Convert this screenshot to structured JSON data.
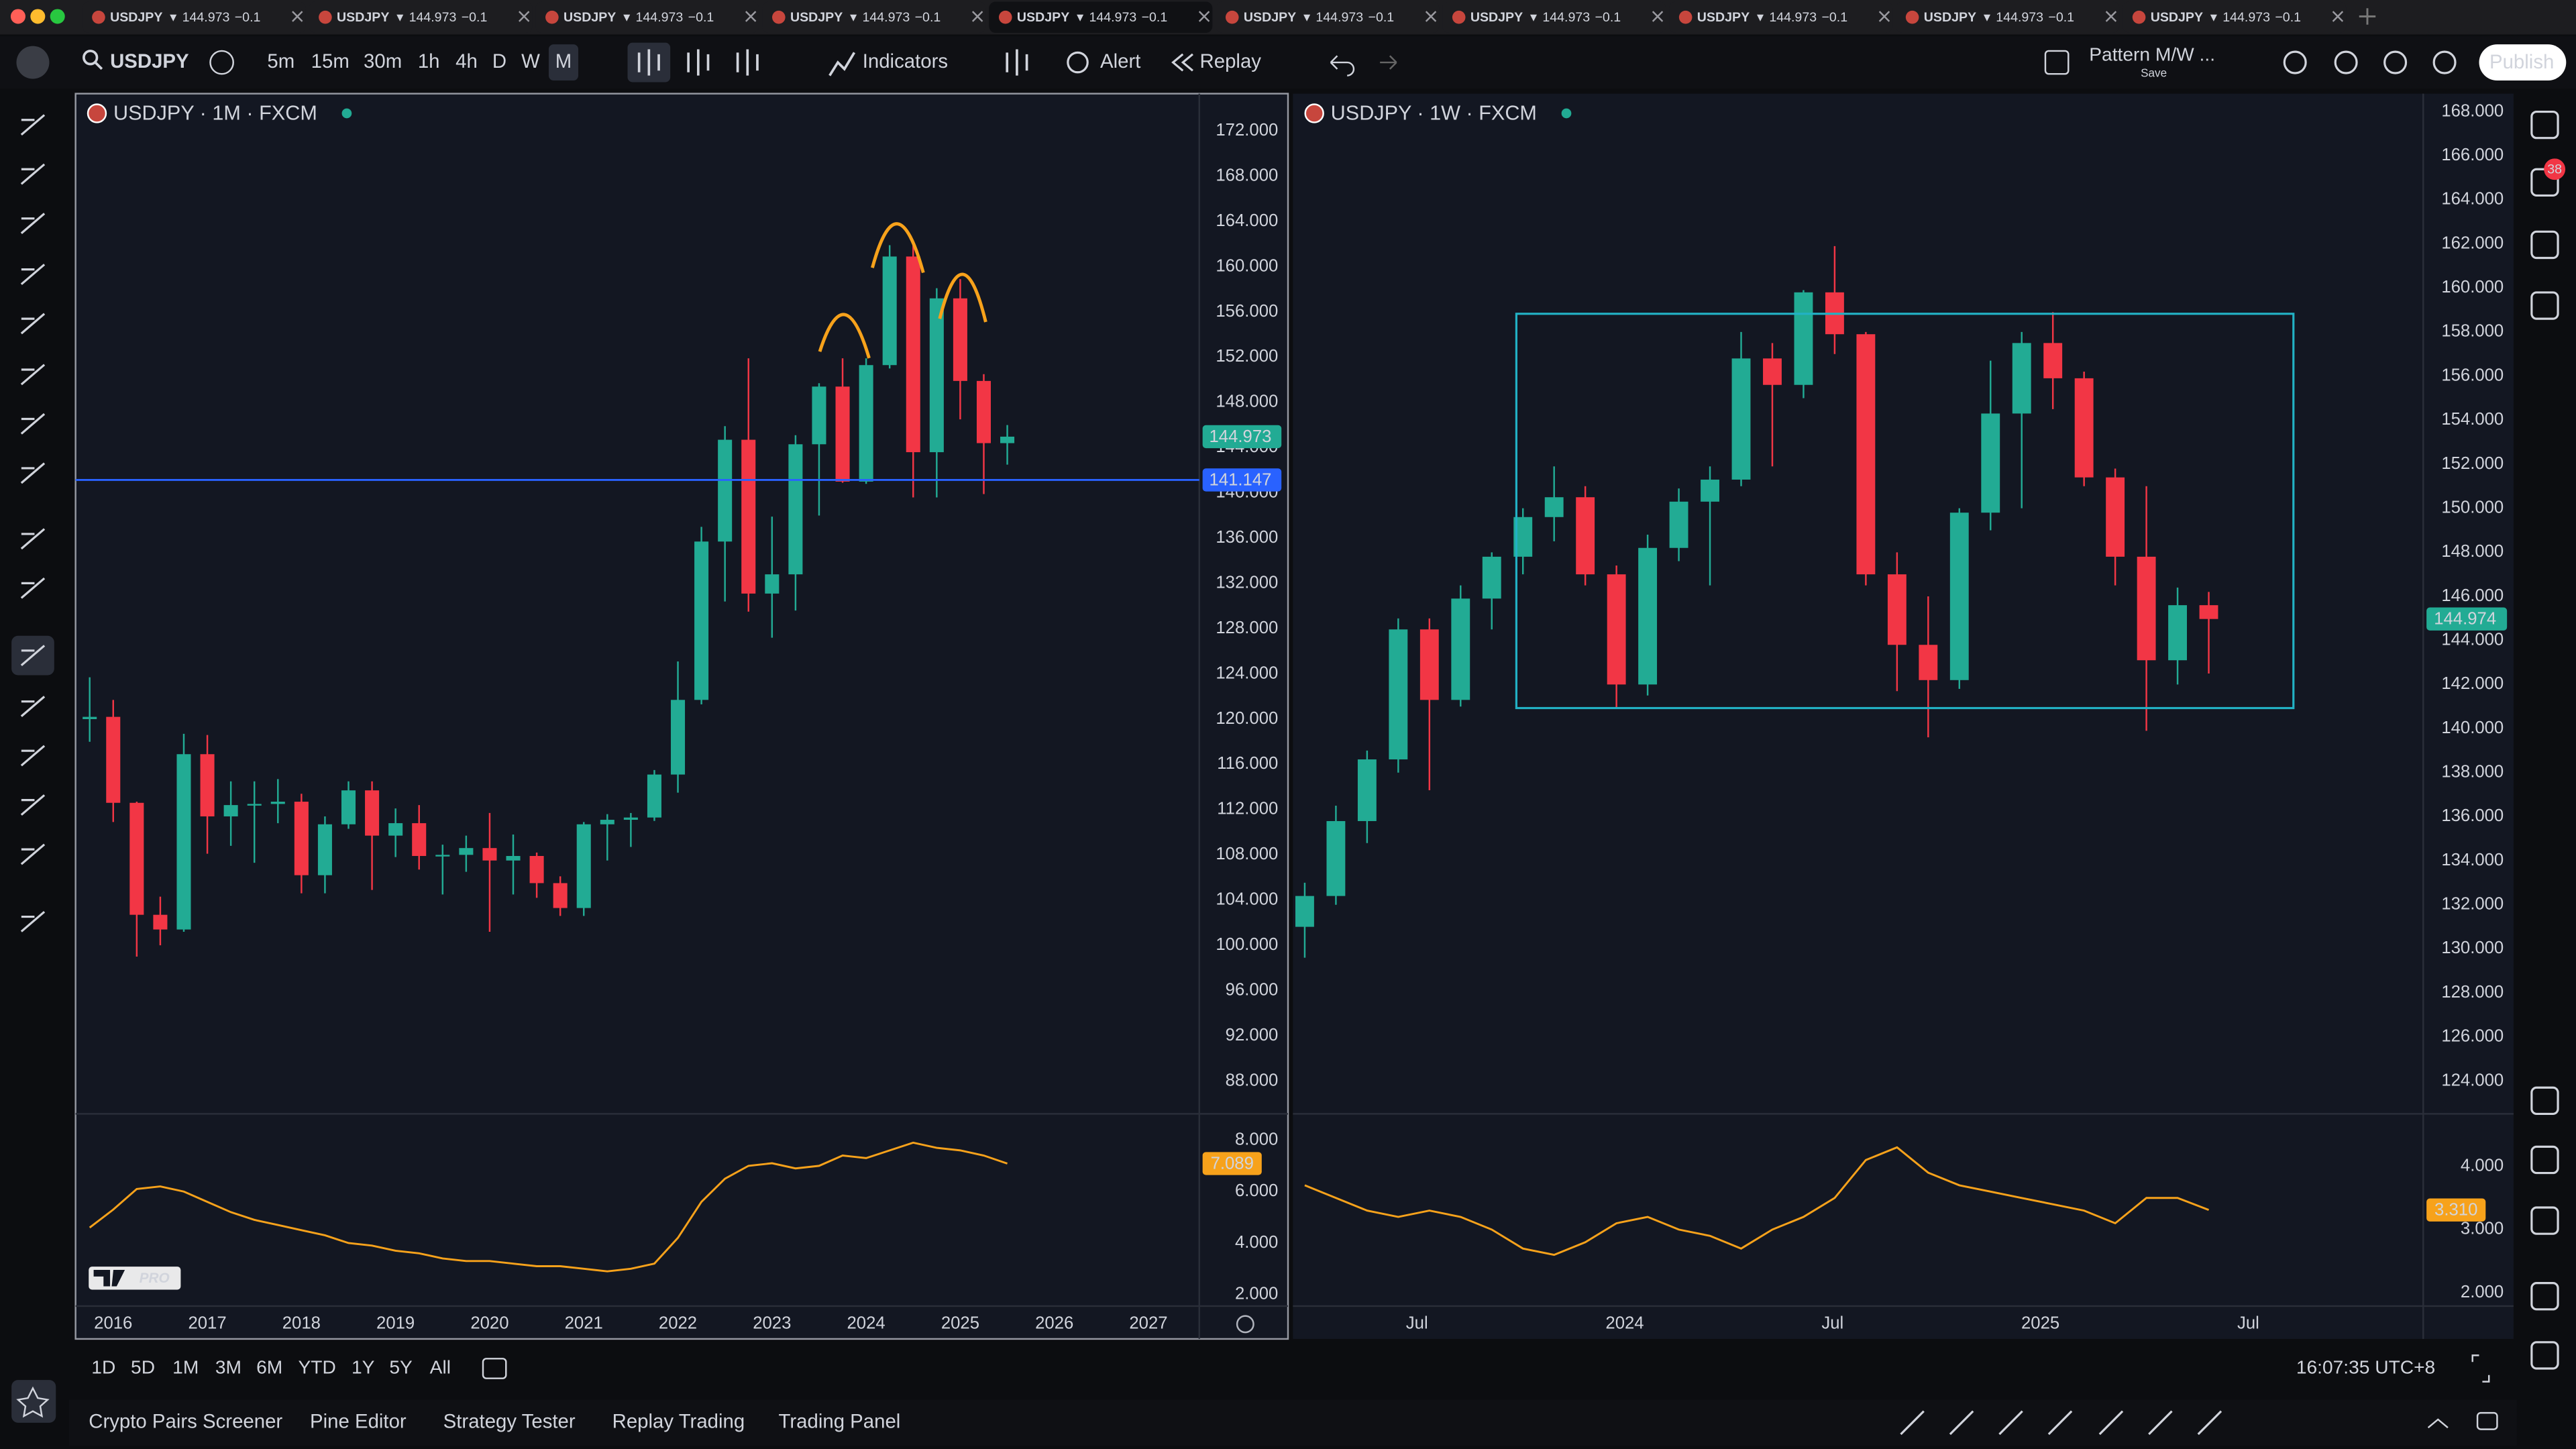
{
  "ui": {
    "tabs": [
      {
        "symbol": "USDJPY",
        "arrow": "▼",
        "price": "144.973",
        "change": "−0.1"
      },
      {
        "symbol": "USDJPY",
        "arrow": "▼",
        "price": "144.973",
        "change": "−0.1"
      },
      {
        "symbol": "USDJPY",
        "arrow": "▼",
        "price": "144.973",
        "change": "−0.1"
      },
      {
        "symbol": "USDJPY",
        "arrow": "▼",
        "price": "144.973",
        "change": "−0.1"
      },
      {
        "symbol": "USDJPY",
        "arrow": "▼",
        "price": "144.973",
        "change": "−0.1"
      },
      {
        "symbol": "USDJPY",
        "arrow": "▼",
        "price": "144.973",
        "change": "−0.1"
      },
      {
        "symbol": "USDJPY",
        "arrow": "▼",
        "price": "144.973",
        "change": "−0.1"
      },
      {
        "symbol": "USDJPY",
        "arrow": "▼",
        "price": "144.973",
        "change": "−0.1"
      },
      {
        "symbol": "USDJPY",
        "arrow": "▼",
        "price": "144.973",
        "change": "−0.1"
      },
      {
        "symbol": "USDJPY",
        "arrow": "▼",
        "price": "144.973",
        "change": "−0.1"
      }
    ],
    "toolbar": {
      "symbol": "USDJPY",
      "intervals": [
        "5m",
        "15m",
        "30m",
        "1h",
        "4h",
        "D",
        "W",
        "M"
      ],
      "indicators": "Indicators",
      "alert": "Alert",
      "replay": "Replay",
      "layout_name": "Pattern M/W ...",
      "save": "Save",
      "publish": "Publish"
    },
    "notification_count": "38",
    "logo": "PRO",
    "ranges": [
      "1D",
      "5D",
      "1M",
      "3M",
      "6M",
      "YTD",
      "1Y",
      "5Y",
      "All"
    ],
    "clock": "16:07:35 UTC+8",
    "bottom_tabs": [
      "Crypto Pairs Screener",
      "Pine Editor",
      "Strategy Tester",
      "Replay Trading",
      "Trading Panel"
    ]
  },
  "chart_data": [
    {
      "type": "candlestick",
      "title": "USDJPY · 1M · FXCM",
      "up_color": "#22ab94",
      "down_color": "#f23645",
      "x": [
        2015.75,
        2016,
        2016.25,
        2016.5,
        2016.75,
        2017,
        2017.25,
        2017.5,
        2017.75,
        2018,
        2018.25,
        2018.5,
        2018.75,
        2019,
        2019.25,
        2019.5,
        2019.75,
        2020,
        2020.25,
        2020.5,
        2020.75,
        2021,
        2021.25,
        2021.5,
        2021.75,
        2022,
        2022.25,
        2022.5,
        2022.75,
        2023,
        2023.25,
        2023.5,
        2023.75,
        2024,
        2024.25,
        2024.5,
        2024.75,
        2025,
        2025.25,
        2025.5
      ],
      "open": [
        120,
        120.2,
        112.6,
        102.7,
        101.4,
        116.9,
        111.4,
        112.4,
        112.5,
        112.7,
        106.2,
        110.7,
        113.7,
        109.7,
        110.8,
        107.9,
        108,
        108.6,
        107.5,
        107.9,
        105.5,
        103.3,
        110.7,
        111.1,
        111.3,
        115.1,
        121.7,
        135.7,
        144.7,
        131.1,
        132.8,
        144.3,
        149.4,
        141,
        151.3,
        160.9,
        143.6,
        157.2,
        149.9,
        144.4
      ],
      "high": [
        123.7,
        121.7,
        112.7,
        104.3,
        118.7,
        118.6,
        114.5,
        114.5,
        114.7,
        113.4,
        111.4,
        114.5,
        114.5,
        112.1,
        112.4,
        108.9,
        109.7,
        111.7,
        109.8,
        108.2,
        106.1,
        110.9,
        111.6,
        111.7,
        115.5,
        125.1,
        137,
        145.9,
        151.9,
        137.9,
        145.1,
        149.7,
        151.9,
        151.9,
        161.9,
        161.9,
        158.1,
        158.9,
        150.5,
        146
      ],
      "low": [
        118,
        110.9,
        99,
        100,
        101.2,
        108.1,
        108.8,
        107.3,
        110.8,
        104.6,
        104.6,
        110.3,
        104.9,
        107.8,
        106.7,
        104.5,
        106.5,
        101.2,
        104.5,
        104.2,
        102.6,
        102.6,
        107.5,
        108.7,
        111,
        113.5,
        121.3,
        130.4,
        129.5,
        127.2,
        129.6,
        138,
        140.9,
        140.8,
        151,
        139.6,
        139.6,
        146.5,
        139.9,
        142.5
      ],
      "close": [
        120.2,
        112.6,
        102.7,
        101.4,
        116.9,
        111.4,
        112.4,
        112.5,
        112.7,
        106.2,
        110.7,
        113.7,
        109.7,
        110.8,
        107.9,
        108,
        108.6,
        107.5,
        107.9,
        105.5,
        103.3,
        110.7,
        111.1,
        111.3,
        115.1,
        121.7,
        135.7,
        144.7,
        131.1,
        132.8,
        144.3,
        149.4,
        141,
        151.3,
        160.9,
        143.6,
        157.2,
        149.9,
        144.4,
        144.973
      ],
      "xlim": [
        2015.6,
        2027.54
      ],
      "xticks": [
        2016,
        2017,
        2018,
        2019,
        2020,
        2021,
        2022,
        2023,
        2024,
        2025,
        2026,
        2027
      ],
      "ylim": [
        85.1,
        175.3
      ],
      "yticks": [
        {
          "value": 88,
          "label": "88.000"
        },
        {
          "value": 92,
          "label": "92.000"
        },
        {
          "value": 96,
          "label": "96.000"
        },
        {
          "value": 100,
          "label": "100.000"
        },
        {
          "value": 104,
          "label": "104.000"
        },
        {
          "value": 108,
          "label": "108.000"
        },
        {
          "value": 112,
          "label": "112.000"
        },
        {
          "value": 116,
          "label": "116.000"
        },
        {
          "value": 120,
          "label": "120.000"
        },
        {
          "value": 124,
          "label": "124.000"
        },
        {
          "value": 128,
          "label": "128.000"
        },
        {
          "value": 132,
          "label": "132.000"
        },
        {
          "value": 136,
          "label": "136.000"
        },
        {
          "value": 140,
          "label": "140.000"
        },
        {
          "value": 144,
          "label": "144.000"
        },
        {
          "value": 148,
          "label": "148.000"
        },
        {
          "value": 152,
          "label": "152.000"
        },
        {
          "value": 156,
          "label": "156.000"
        },
        {
          "value": 160,
          "label": "160.000"
        },
        {
          "value": 164,
          "label": "164.000"
        },
        {
          "value": 168,
          "label": "168.000"
        },
        {
          "value": 172,
          "label": "172.000"
        }
      ],
      "price_badges": [
        {
          "value": 144.973,
          "label": "144.973",
          "color": "#22ab94",
          "line": false
        },
        {
          "value": 141.147,
          "label": "141.147",
          "color": "#2962ff",
          "line": true
        }
      ],
      "indicator": {
        "type": "line",
        "color": "#f7a21b",
        "values": [
          4.6,
          5.3,
          6.1,
          6.2,
          6,
          5.6,
          5.2,
          4.9,
          4.7,
          4.5,
          4.3,
          4,
          3.9,
          3.7,
          3.6,
          3.4,
          3.3,
          3.3,
          3.2,
          3.1,
          3.1,
          3,
          2.9,
          3,
          3.2,
          4.2,
          5.6,
          6.5,
          7,
          7.1,
          6.9,
          7,
          7.4,
          7.3,
          7.6,
          7.9,
          7.7,
          7.6,
          7.4,
          7.089
        ],
        "ylim": [
          1.55,
          9.02
        ],
        "yticks": [
          {
            "value": 2,
            "label": "2.000"
          },
          {
            "value": 4,
            "label": "4.000"
          },
          {
            "value": 6,
            "label": "6.000"
          },
          {
            "value": 8,
            "label": "8.000"
          }
        ],
        "badge": {
          "value": 7.089,
          "label": "7.089"
        }
      }
    },
    {
      "type": "candlestick",
      "title": "USDJPY · 1W · FXCM",
      "up_color": "#22ab94",
      "down_color": "#f23645",
      "x": [
        2023.23,
        2023.305,
        2023.38,
        2023.455,
        2023.53,
        2023.605,
        2023.68,
        2023.755,
        2023.83,
        2023.905,
        2023.98,
        2024.055,
        2024.13,
        2024.205,
        2024.28,
        2024.355,
        2024.43,
        2024.505,
        2024.58,
        2024.655,
        2024.73,
        2024.805,
        2024.88,
        2024.955,
        2025.03,
        2025.105,
        2025.18,
        2025.255,
        2025.33,
        2025.405
      ],
      "open": [
        131,
        132.4,
        135.8,
        138.6,
        144.5,
        141.3,
        145.9,
        147.8,
        149.6,
        150.5,
        147,
        142,
        148.2,
        150.3,
        151.3,
        156.8,
        155.6,
        159.8,
        157.9,
        147,
        143.8,
        142.2,
        149.8,
        154.3,
        157.5,
        155.9,
        151.4,
        147.8,
        143.1,
        145.6
      ],
      "high": [
        133,
        136.5,
        139,
        145,
        145,
        146.5,
        148,
        150,
        151.9,
        151,
        147.4,
        148.8,
        150.9,
        151.9,
        158,
        157.5,
        159.9,
        161.9,
        158,
        148,
        146,
        150,
        156.7,
        158,
        158.9,
        156.2,
        151.8,
        151,
        146.4,
        146.2
      ],
      "low": [
        129.6,
        132,
        134.8,
        138,
        137.2,
        141,
        144.5,
        147,
        148.5,
        146.5,
        140.9,
        141.5,
        147.6,
        146.5,
        151,
        151.9,
        155,
        157,
        146.5,
        141.7,
        139.6,
        141.8,
        149,
        150,
        154.5,
        151,
        146.5,
        139.9,
        142,
        142.5
      ],
      "close": [
        132.4,
        135.8,
        138.6,
        144.5,
        141.3,
        145.9,
        147.8,
        149.6,
        150.5,
        147,
        142,
        148.2,
        150.3,
        151.3,
        156.8,
        155.6,
        159.8,
        157.9,
        147,
        143.8,
        142.2,
        149.8,
        154.3,
        157.5,
        155.9,
        151.4,
        147.8,
        143.1,
        145.6,
        144.974
      ],
      "xlim": [
        2023.2016,
        2025.921
      ],
      "xticks": [
        {
          "value": 2023.5,
          "label": "Jul"
        },
        2024,
        {
          "value": 2024.5,
          "label": "Jul"
        },
        2025,
        {
          "value": 2025.5,
          "label": "Jul"
        }
      ],
      "ylim": [
        122.51,
        168.82
      ],
      "yticks": [
        {
          "value": 124,
          "label": "124.000"
        },
        {
          "value": 126,
          "label": "126.000"
        },
        {
          "value": 128,
          "label": "128.000"
        },
        {
          "value": 130,
          "label": "130.000"
        },
        {
          "value": 132,
          "label": "132.000"
        },
        {
          "value": 134,
          "label": "134.000"
        },
        {
          "value": 136,
          "label": "136.000"
        },
        {
          "value": 138,
          "label": "138.000"
        },
        {
          "value": 140,
          "label": "140.000"
        },
        {
          "value": 142,
          "label": "142.000"
        },
        {
          "value": 144,
          "label": "144.000"
        },
        {
          "value": 146,
          "label": "146.000"
        },
        {
          "value": 148,
          "label": "148.000"
        },
        {
          "value": 150,
          "label": "150.000"
        },
        {
          "value": 152,
          "label": "152.000"
        },
        {
          "value": 154,
          "label": "154.000"
        },
        {
          "value": 156,
          "label": "156.000"
        },
        {
          "value": 158,
          "label": "158.000"
        },
        {
          "value": 160,
          "label": "160.000"
        },
        {
          "value": 162,
          "label": "162.000"
        },
        {
          "value": 164,
          "label": "164.000"
        },
        {
          "value": 166,
          "label": "166.000"
        },
        {
          "value": 168,
          "label": "168.000"
        }
      ],
      "price_badges": [
        {
          "value": 144.974,
          "label": "144.974",
          "color": "#22ab94",
          "line": false
        }
      ],
      "indicator": {
        "type": "line",
        "color": "#f7a21b",
        "values": [
          3.7,
          3.5,
          3.3,
          3.2,
          3.3,
          3.2,
          3,
          2.7,
          2.6,
          2.8,
          3.1,
          3.2,
          3,
          2.9,
          2.7,
          3,
          3.2,
          3.5,
          4.1,
          4.3,
          3.9,
          3.7,
          3.6,
          3.5,
          3.4,
          3.3,
          3.1,
          3.5,
          3.5,
          3.31
        ],
        "ylim": [
          1.79,
          4.83
        ],
        "yticks": [
          {
            "value": 2,
            "label": "2.000"
          },
          {
            "value": 3,
            "label": "3.000"
          },
          {
            "value": 4,
            "label": "4.000"
          }
        ],
        "badge": {
          "value": 3.31,
          "label": "3.310"
        }
      }
    }
  ]
}
